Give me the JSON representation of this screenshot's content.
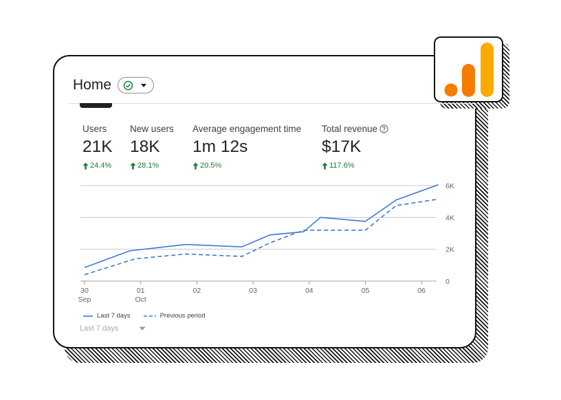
{
  "header": {
    "title": "Home",
    "status_icon": "check-circle-icon",
    "dropdown_icon": "caret-down-icon"
  },
  "logo": {
    "icon": "analytics-logo-icon",
    "colors": [
      "#F57C00",
      "#F9A825",
      "#F9AB00"
    ]
  },
  "metrics": [
    {
      "label": "Users",
      "value": "21K",
      "delta": "24.4%"
    },
    {
      "label": "New users",
      "value": "18K",
      "delta": "28.1%"
    },
    {
      "label": "Average engagement time",
      "value": "1m 12s",
      "delta": "20.5%"
    },
    {
      "label": "Total revenue",
      "value": "$17K",
      "delta": "117.6%",
      "info_icon": "help-circle-icon"
    }
  ],
  "colors": {
    "positive": "#188038",
    "series": "#3b78d8",
    "grid": "#c8c8c8"
  },
  "chart_data": {
    "type": "line",
    "x_labels": [
      [
        "30",
        "Sep"
      ],
      [
        "01",
        "Oct"
      ],
      [
        "02",
        ""
      ],
      [
        "03",
        ""
      ],
      [
        "04",
        ""
      ],
      [
        "05",
        ""
      ],
      [
        "06",
        ""
      ]
    ],
    "y_ticks": [
      "0",
      "2K",
      "4K",
      "6K"
    ],
    "ylim": [
      0,
      6000
    ],
    "y_axis_side": "right",
    "series": [
      {
        "name": "Last 7 days",
        "style": "solid",
        "points": [
          [
            0,
            850
          ],
          [
            0.8,
            1900
          ],
          [
            1.8,
            2300
          ],
          [
            2.8,
            2150
          ],
          [
            3.3,
            2900
          ],
          [
            3.9,
            3100
          ],
          [
            4.2,
            4000
          ],
          [
            5.0,
            3750
          ],
          [
            5.55,
            5100
          ],
          [
            6.3,
            6050
          ]
        ]
      },
      {
        "name": "Previous period",
        "style": "dashed",
        "points": [
          [
            0,
            400
          ],
          [
            0.9,
            1400
          ],
          [
            1.8,
            1700
          ],
          [
            2.8,
            1550
          ],
          [
            3.3,
            2400
          ],
          [
            3.9,
            3200
          ],
          [
            4.2,
            3200
          ],
          [
            5.0,
            3200
          ],
          [
            5.55,
            4750
          ],
          [
            6.3,
            5150
          ]
        ]
      }
    ],
    "grid": true,
    "legend_position": "bottom-left"
  },
  "legend": [
    {
      "label": "Last 7 days",
      "style": "solid"
    },
    {
      "label": "Previous period",
      "style": "dashed"
    }
  ],
  "date_range": {
    "label": "Last 7 days",
    "icon": "caret-down-icon"
  }
}
